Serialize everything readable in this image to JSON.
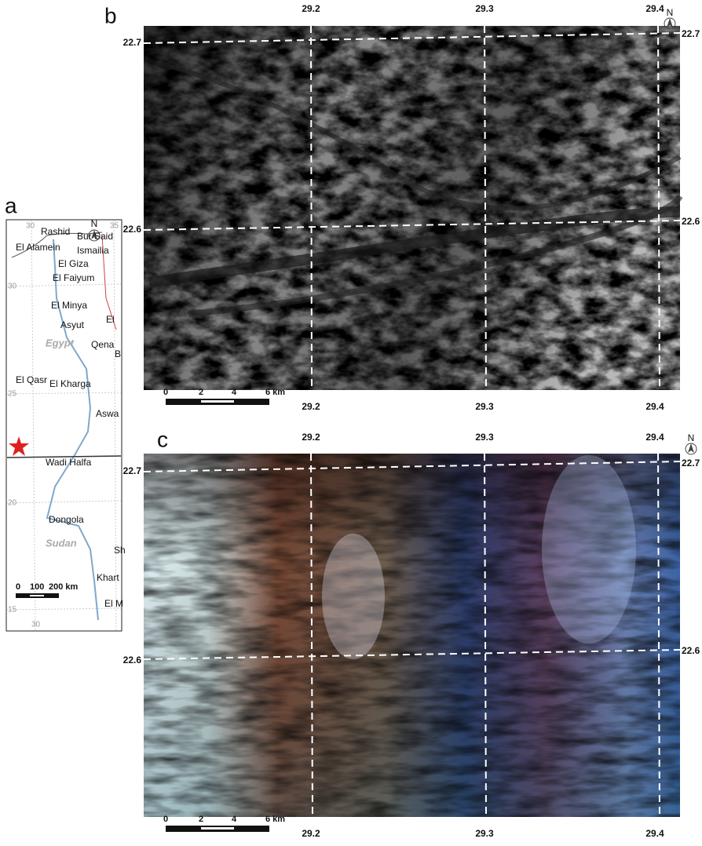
{
  "panel_a": {
    "label": "a",
    "north": "N",
    "coords": [
      "30",
      "35",
      "30",
      "25",
      "20",
      "15",
      "30"
    ],
    "places": [
      "Rashid",
      "Bur Said",
      "El Alamein",
      "Ismailia",
      "El Giza",
      "El Faiyum",
      "El Minya",
      "El",
      "B",
      "Asyut",
      "Egypt",
      "Qena",
      "El Qasr",
      "El Kharga",
      "Aswa",
      "Wadi Halfa",
      "Dongola",
      "Sudan",
      "Sh",
      "Khart",
      "El M"
    ],
    "scale": [
      "0",
      "100",
      "200 km"
    ]
  },
  "panel_b": {
    "label": "b",
    "north": "N",
    "top_ticks": [
      "29.2",
      "29.3",
      "29.4"
    ],
    "bottom_ticks": [
      "29.2",
      "29.3",
      "29.4"
    ],
    "left_ticks": [
      "22.7",
      "22.6"
    ],
    "right_ticks": [
      "22.7",
      "22.6"
    ],
    "scale": [
      "0",
      "2",
      "4",
      "6 km"
    ]
  },
  "panel_c": {
    "label": "c",
    "north": "N",
    "top_ticks": [
      "29.2",
      "29.3",
      "29.4"
    ],
    "bottom_ticks": [
      "29.2",
      "29.3",
      "29.4"
    ],
    "left_ticks": [
      "22.7",
      "22.6"
    ],
    "right_ticks": [
      "22.7",
      "22.6"
    ],
    "scale": [
      "0",
      "2",
      "4",
      "6 km"
    ]
  }
}
